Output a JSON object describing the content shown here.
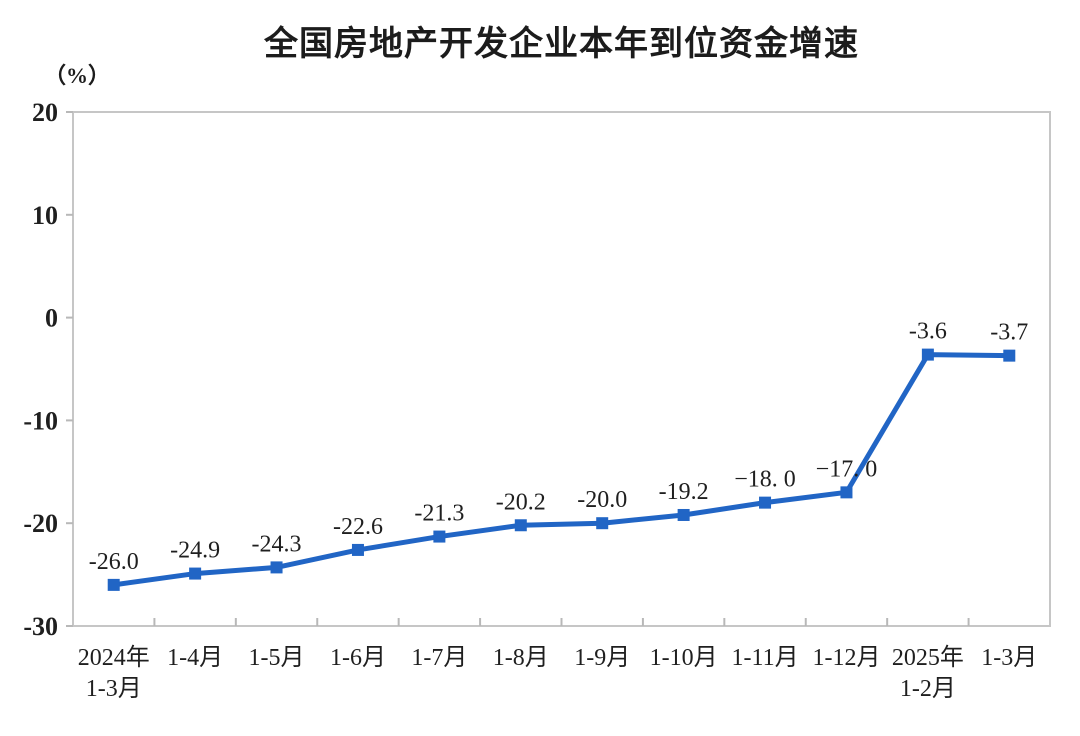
{
  "chart_data": {
    "type": "line",
    "title": "全国房地产开发企业本年到位资金增速",
    "ylabel": "（%）",
    "categories": [
      "2024年\n1-3月",
      "1-4月",
      "1-5月",
      "1-6月",
      "1-7月",
      "1-8月",
      "1-9月",
      "1-10月",
      "1-11月",
      "1-12月",
      "2025年\n1-2月",
      "1-3月"
    ],
    "values": [
      -26.0,
      -24.9,
      -24.3,
      -22.6,
      -21.3,
      -20.2,
      -20.0,
      -19.2,
      -18.0,
      -17.0,
      -3.6,
      -3.7
    ],
    "point_labels": [
      "-26.0",
      "-24.9",
      "-24.3",
      "-22.6",
      "-21.3",
      "-20.2",
      "-20.0",
      "-19.2",
      "−18. 0",
      "−17. 0",
      "-3.6",
      "-3.7"
    ],
    "ylim": [
      -30,
      20
    ],
    "yticks": [
      20,
      10,
      0,
      -10,
      -20,
      -30
    ],
    "grid": false,
    "legend": "none",
    "marker": "square",
    "colors": {
      "line": "#2165c5",
      "marker": "#2165c5",
      "axis": "#c6c6c6",
      "tick": "#b8b8b8",
      "text": "#1f1f1f"
    }
  }
}
